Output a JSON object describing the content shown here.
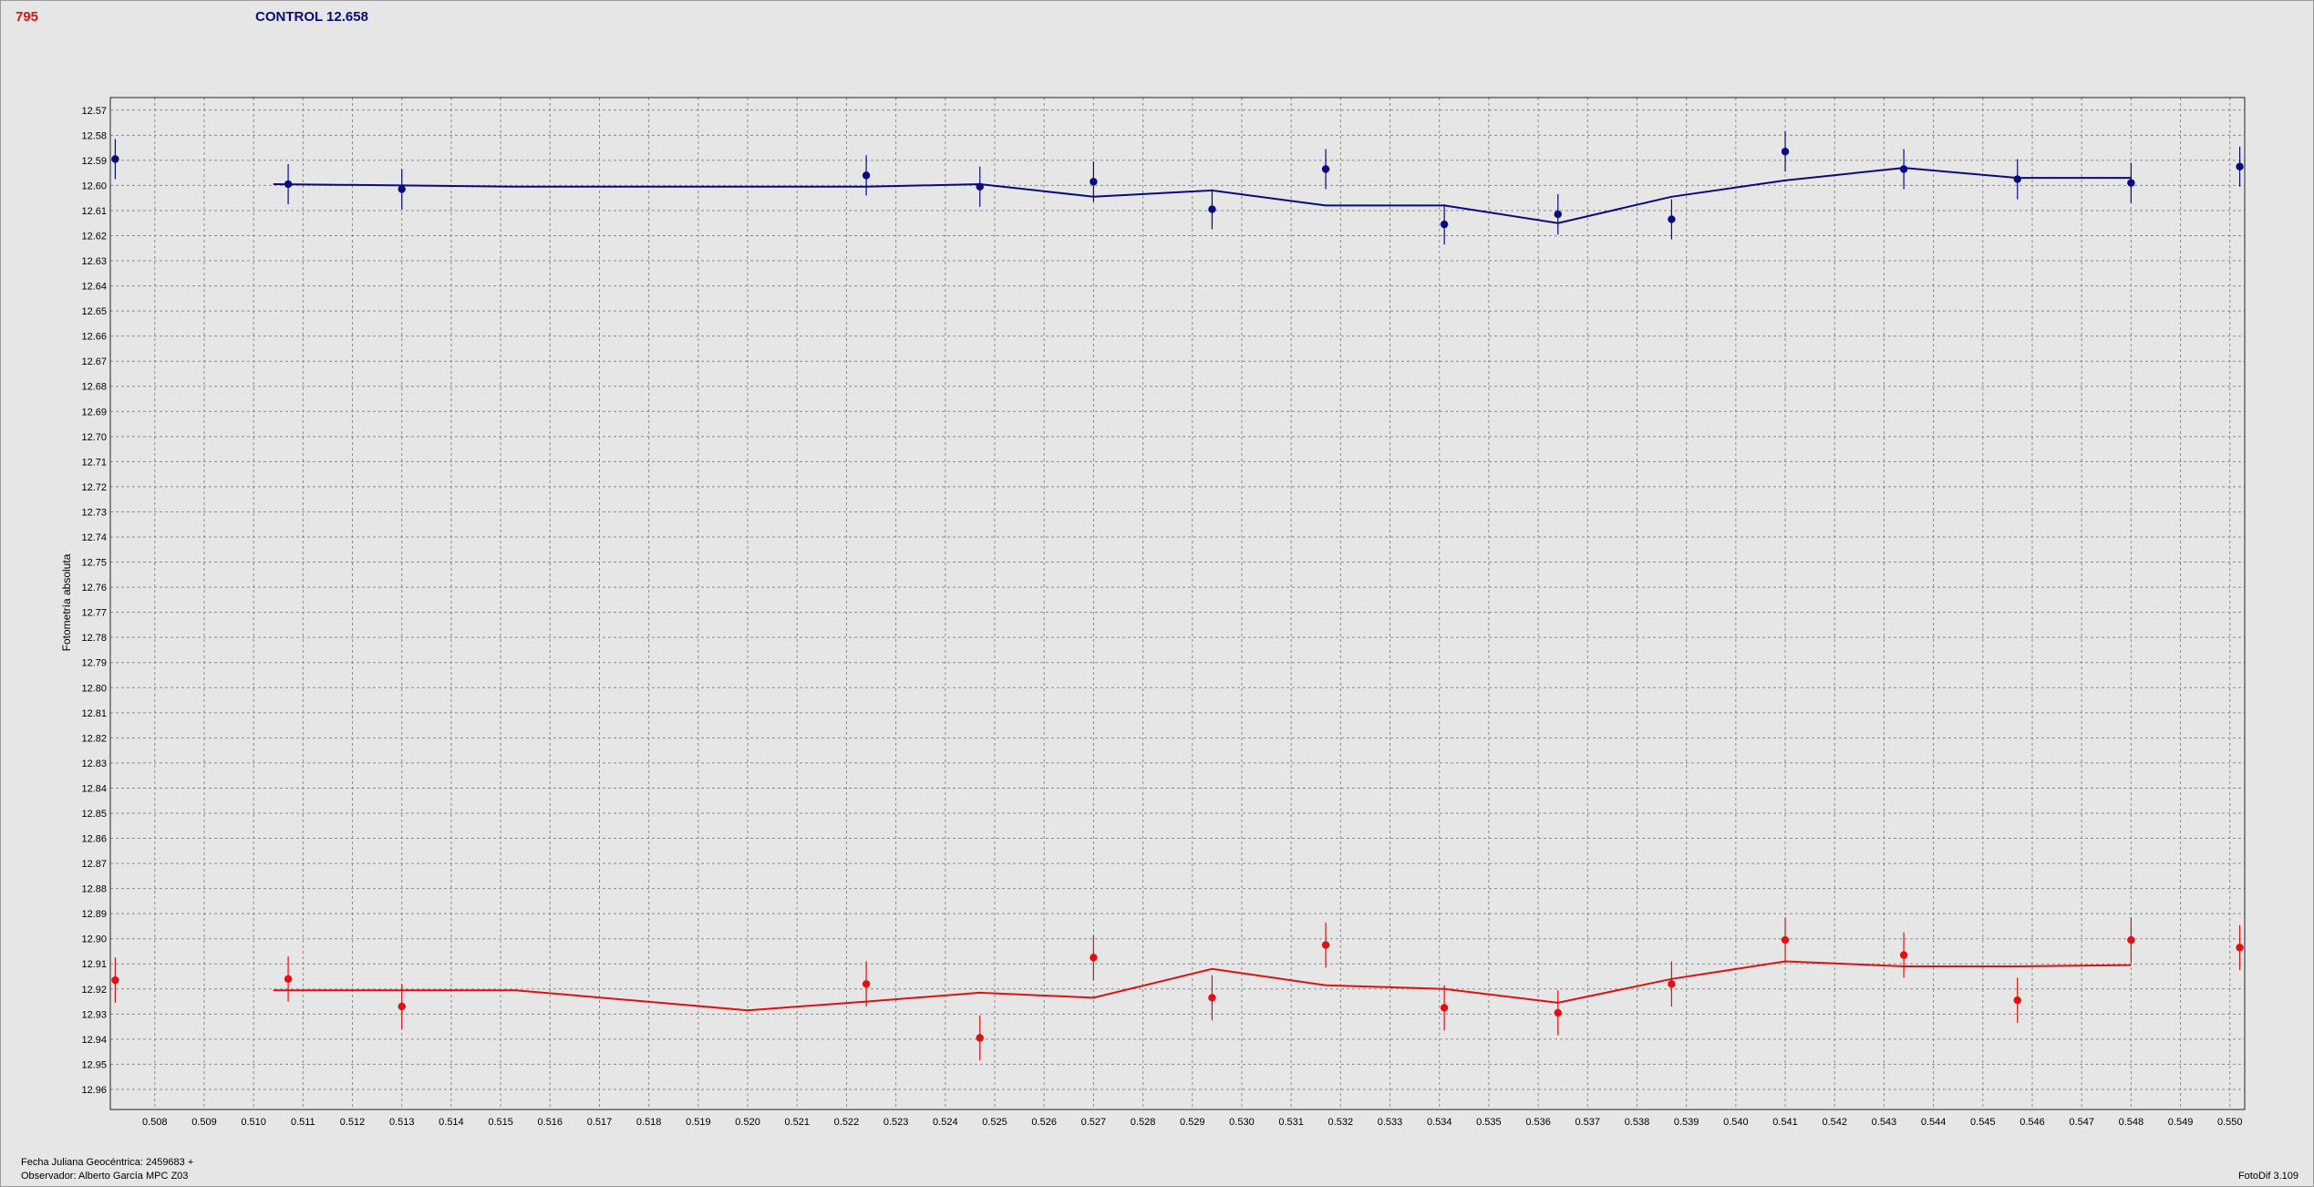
{
  "header": {
    "object_id": "795",
    "control": "CONTROL 12.658"
  },
  "footer": {
    "jd_label": "Fecha Juliana Geocéntrica: 2459683 +",
    "observer": "Observador: Alberto García MPC Z03",
    "version": "FotoDif 3.109"
  },
  "chart_data": {
    "type": "scatter",
    "title": "",
    "xlabel": "",
    "ylabel": "Fotometría absoluta",
    "xlim": [
      0.5071,
      0.5503
    ],
    "ylim": [
      12.565,
      12.968
    ],
    "y_inverted": true,
    "grid": true,
    "x_ticks": [
      "0.508",
      "0.509",
      "0.510",
      "0.511",
      "0.512",
      "0.513",
      "0.514",
      "0.515",
      "0.516",
      "0.517",
      "0.518",
      "0.519",
      "0.520",
      "0.521",
      "0.522",
      "0.523",
      "0.524",
      "0.525",
      "0.526",
      "0.527",
      "0.528",
      "0.529",
      "0.530",
      "0.531",
      "0.532",
      "0.533",
      "0.534",
      "0.535",
      "0.536",
      "0.537",
      "0.538",
      "0.539",
      "0.540",
      "0.541",
      "0.542",
      "0.543",
      "0.544",
      "0.545",
      "0.546",
      "0.547",
      "0.548",
      "0.549",
      "0.550"
    ],
    "y_ticks": [
      "12.57",
      "12.58",
      "12.59",
      "12.60",
      "12.61",
      "12.62",
      "12.63",
      "12.64",
      "12.65",
      "12.66",
      "12.67",
      "12.68",
      "12.69",
      "12.70",
      "12.71",
      "12.72",
      "12.73",
      "12.74",
      "12.75",
      "12.76",
      "12.77",
      "12.78",
      "12.79",
      "12.80",
      "12.81",
      "12.82",
      "12.83",
      "12.84",
      "12.85",
      "12.86",
      "12.87",
      "12.88",
      "12.89",
      "12.90",
      "12.91",
      "12.92",
      "12.93",
      "12.94",
      "12.95",
      "12.96"
    ],
    "series": [
      {
        "color": "#0a0a80",
        "points": [
          {
            "x": 0.5072,
            "y": 12.5895,
            "err": 0.008
          },
          {
            "x": 0.5107,
            "y": 12.5995,
            "err": 0.008
          },
          {
            "x": 0.513,
            "y": 12.6015,
            "err": 0.008
          },
          {
            "x": 0.5224,
            "y": 12.596,
            "err": 0.008
          },
          {
            "x": 0.5247,
            "y": 12.6005,
            "err": 0.008
          },
          {
            "x": 0.527,
            "y": 12.5985,
            "err": 0.008
          },
          {
            "x": 0.5294,
            "y": 12.6095,
            "err": 0.008
          },
          {
            "x": 0.5317,
            "y": 12.5935,
            "err": 0.008
          },
          {
            "x": 0.5341,
            "y": 12.6155,
            "err": 0.008
          },
          {
            "x": 0.5364,
            "y": 12.6115,
            "err": 0.008
          },
          {
            "x": 0.5387,
            "y": 12.6135,
            "err": 0.008
          },
          {
            "x": 0.541,
            "y": 12.5865,
            "err": 0.008
          },
          {
            "x": 0.5434,
            "y": 12.5935,
            "err": 0.008
          },
          {
            "x": 0.5457,
            "y": 12.5975,
            "err": 0.008
          },
          {
            "x": 0.548,
            "y": 12.599,
            "err": 0.008
          },
          {
            "x": 0.5502,
            "y": 12.5925,
            "err": 0.008
          }
        ],
        "fit": [
          {
            "x": 0.5104,
            "y": 12.5995
          },
          {
            "x": 0.513,
            "y": 12.6
          },
          {
            "x": 0.5153,
            "y": 12.6005
          },
          {
            "x": 0.52,
            "y": 12.6005
          },
          {
            "x": 0.5224,
            "y": 12.6005
          },
          {
            "x": 0.5247,
            "y": 12.5995
          },
          {
            "x": 0.527,
            "y": 12.6045
          },
          {
            "x": 0.5294,
            "y": 12.602
          },
          {
            "x": 0.5317,
            "y": 12.608
          },
          {
            "x": 0.5341,
            "y": 12.608
          },
          {
            "x": 0.5364,
            "y": 12.615
          },
          {
            "x": 0.5387,
            "y": 12.6045
          },
          {
            "x": 0.541,
            "y": 12.598
          },
          {
            "x": 0.5434,
            "y": 12.593
          },
          {
            "x": 0.5457,
            "y": 12.597
          },
          {
            "x": 0.548,
            "y": 12.597
          }
        ]
      },
      {
        "color": "#e01010",
        "points": [
          {
            "x": 0.5072,
            "y": 12.9165,
            "err": 0.009
          },
          {
            "x": 0.5107,
            "y": 12.916,
            "err": 0.009
          },
          {
            "x": 0.513,
            "y": 12.927,
            "err": 0.009
          },
          {
            "x": 0.5224,
            "y": 12.918,
            "err": 0.009
          },
          {
            "x": 0.5247,
            "y": 12.9395,
            "err": 0.009
          },
          {
            "x": 0.527,
            "y": 12.9075,
            "err": 0.009
          },
          {
            "x": 0.5294,
            "y": 12.9235,
            "err": 0.009
          },
          {
            "x": 0.5317,
            "y": 12.9025,
            "err": 0.009
          },
          {
            "x": 0.5341,
            "y": 12.9275,
            "err": 0.009
          },
          {
            "x": 0.5364,
            "y": 12.9295,
            "err": 0.009
          },
          {
            "x": 0.5387,
            "y": 12.918,
            "err": 0.009
          },
          {
            "x": 0.541,
            "y": 12.9005,
            "err": 0.009
          },
          {
            "x": 0.5434,
            "y": 12.9065,
            "err": 0.009
          },
          {
            "x": 0.5457,
            "y": 12.9245,
            "err": 0.009
          },
          {
            "x": 0.548,
            "y": 12.9005,
            "err": 0.009
          },
          {
            "x": 0.5502,
            "y": 12.9035,
            "err": 0.009
          }
        ],
        "fit": [
          {
            "x": 0.5104,
            "y": 12.9205
          },
          {
            "x": 0.513,
            "y": 12.9205
          },
          {
            "x": 0.5153,
            "y": 12.9205
          },
          {
            "x": 0.52,
            "y": 12.9285
          },
          {
            "x": 0.5224,
            "y": 12.925
          },
          {
            "x": 0.5247,
            "y": 12.9215
          },
          {
            "x": 0.527,
            "y": 12.9235
          },
          {
            "x": 0.5294,
            "y": 12.912
          },
          {
            "x": 0.5317,
            "y": 12.9185
          },
          {
            "x": 0.5341,
            "y": 12.92
          },
          {
            "x": 0.5364,
            "y": 12.9255
          },
          {
            "x": 0.5387,
            "y": 12.916
          },
          {
            "x": 0.541,
            "y": 12.909
          },
          {
            "x": 0.5434,
            "y": 12.911
          },
          {
            "x": 0.5457,
            "y": 12.911
          },
          {
            "x": 0.548,
            "y": 12.9105
          }
        ]
      }
    ]
  }
}
